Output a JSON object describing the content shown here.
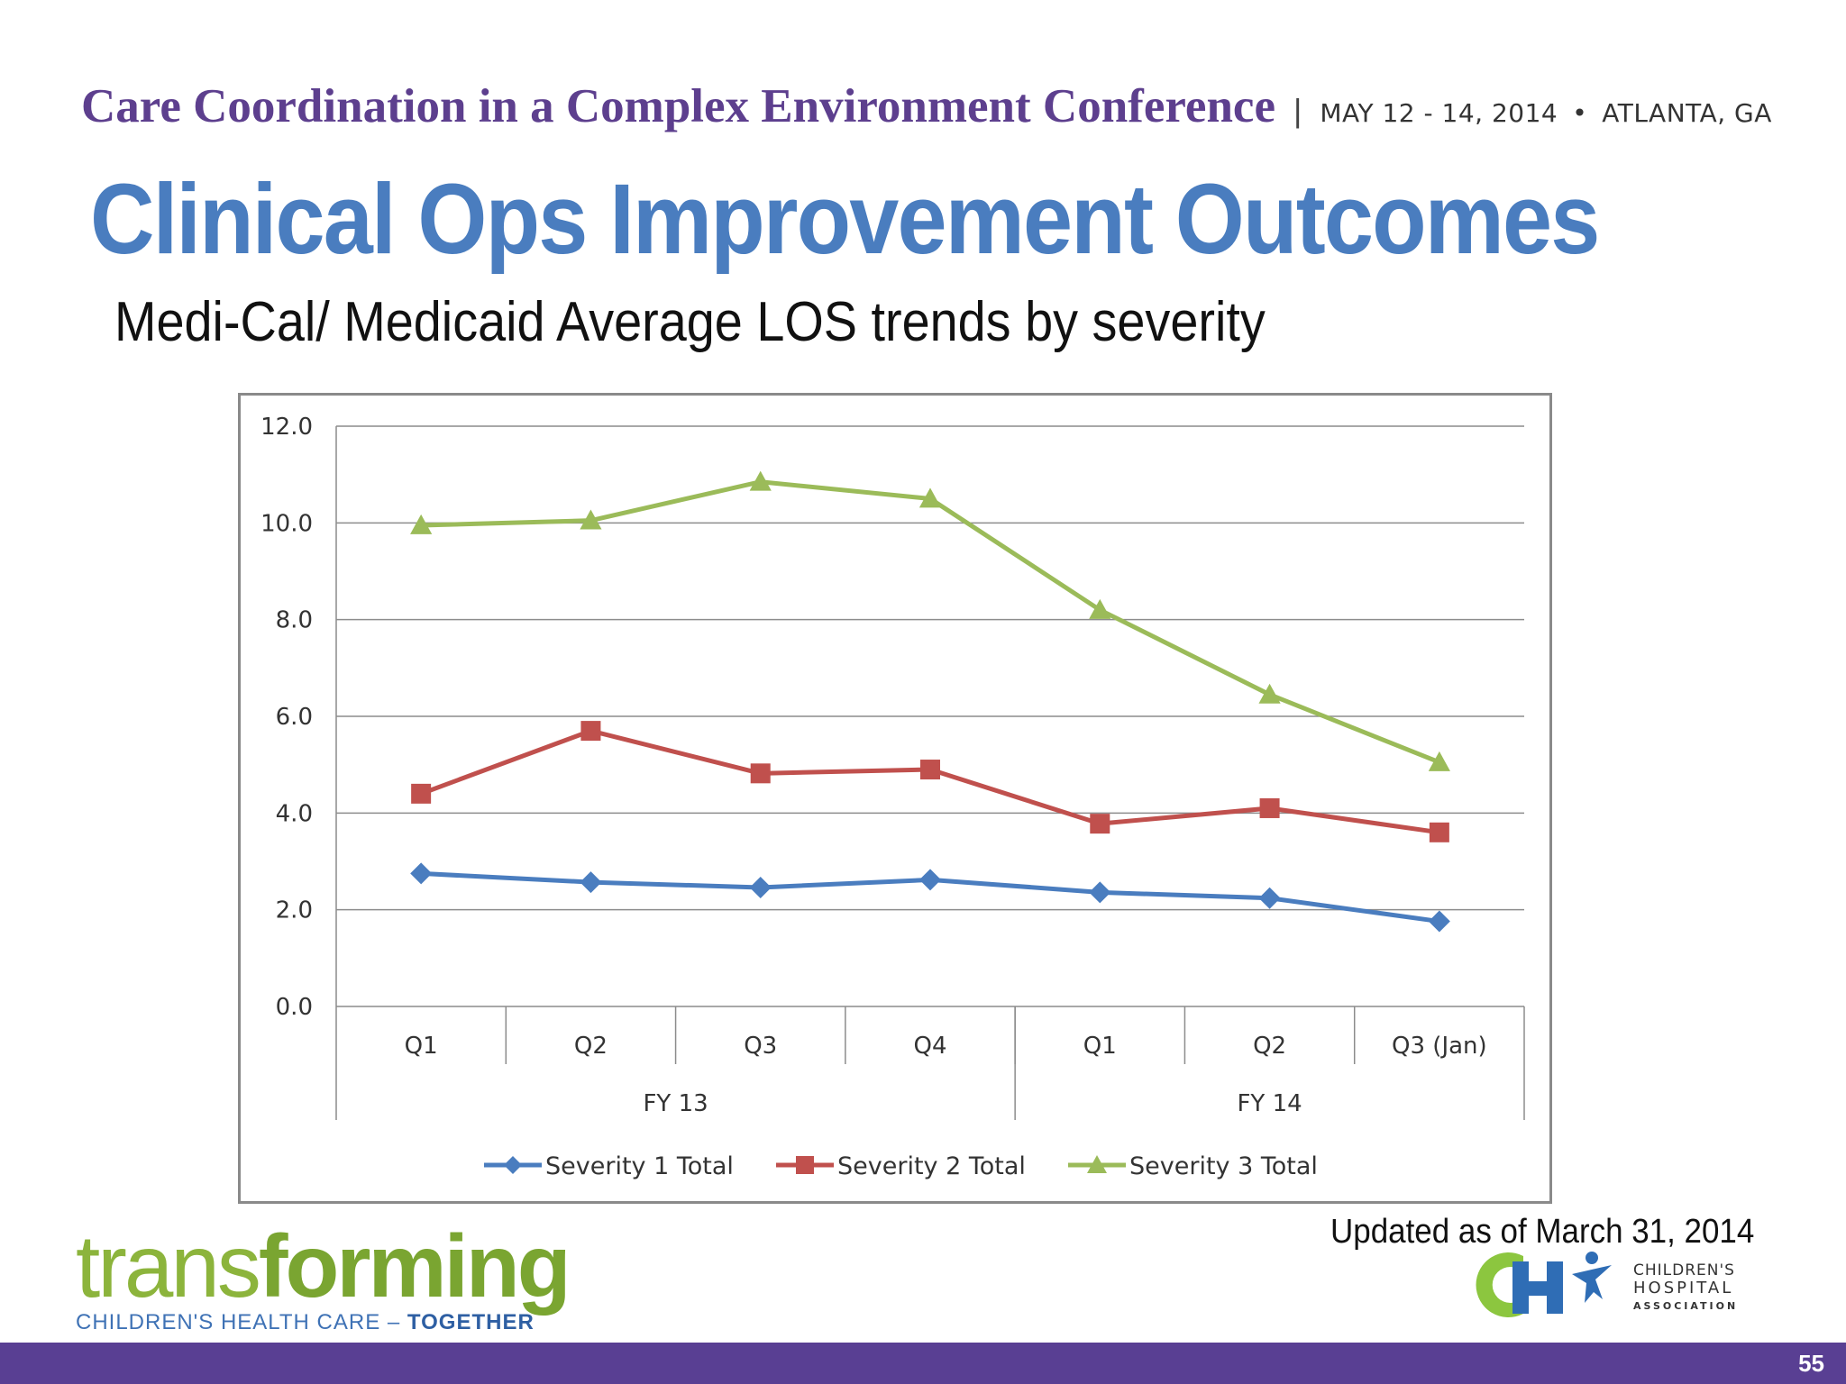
{
  "header": {
    "conference": "Care Coordination in a Complex Environment Conference",
    "separator": "|",
    "dates": "MAY 12 - 14, 2014",
    "bullet": "•",
    "location": "ATLANTA, GA"
  },
  "slide": {
    "title": "Clinical Ops Improvement Outcomes",
    "subtitle": "Medi-Cal/ Medicaid Average LOS trends by severity",
    "updated": "Updated as of  March 31, 2014",
    "page_number": "55"
  },
  "logos": {
    "transforming_light": "trans",
    "transforming_bold": "forming",
    "tagline_main": "CHILDREN'S HEALTH CARE – ",
    "tagline_bold": "TOGETHER",
    "cha_line1": "CHILDREN'S",
    "cha_line2": "HOSPITAL",
    "cha_line3": "ASSOCIATION"
  },
  "colors": {
    "title": "#4a7dbf",
    "conference": "#5d3f8e",
    "footer": "#593f93",
    "severity1": "#4a7dbf",
    "severity2": "#c0504d",
    "severity3": "#9bbb59"
  },
  "chart_data": {
    "type": "line",
    "categories": [
      "Q1",
      "Q2",
      "Q3",
      "Q4",
      "Q1",
      "Q2",
      "Q3 (Jan)"
    ],
    "groups": [
      {
        "label": "FY 13",
        "span": 4
      },
      {
        "label": "FY 14",
        "span": 3
      }
    ],
    "series": [
      {
        "name": "Severity 1 Total",
        "marker": "diamond",
        "color": "#4a7dbf",
        "values": [
          2.75,
          2.57,
          2.46,
          2.62,
          2.36,
          2.24,
          1.76
        ]
      },
      {
        "name": "Severity 2 Total",
        "marker": "square",
        "color": "#c0504d",
        "values": [
          4.4,
          5.7,
          4.82,
          4.9,
          3.78,
          4.1,
          3.6
        ]
      },
      {
        "name": "Severity 3 Total",
        "marker": "triangle",
        "color": "#9bbb59",
        "values": [
          9.95,
          10.05,
          10.85,
          10.5,
          8.2,
          6.45,
          5.05
        ]
      }
    ],
    "ylim": [
      0,
      12
    ],
    "yticks": [
      "0.0",
      "2.0",
      "4.0",
      "6.0",
      "8.0",
      "10.0",
      "12.0"
    ],
    "grid": true,
    "legend": "bottom",
    "title": "",
    "xlabel": "",
    "ylabel": ""
  }
}
